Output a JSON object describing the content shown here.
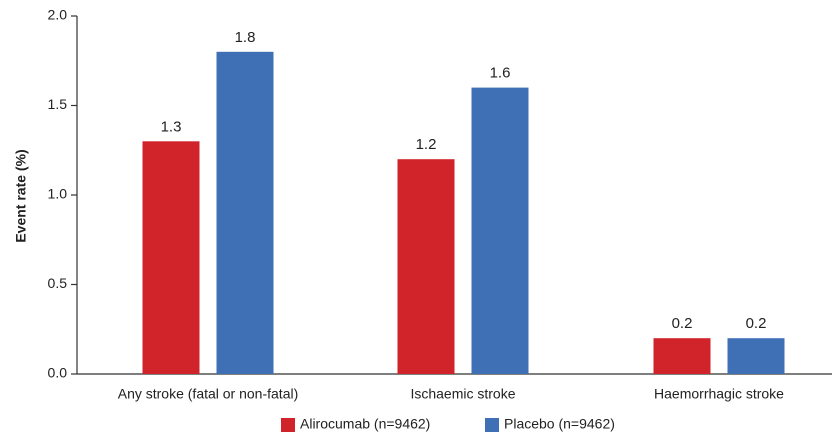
{
  "chart_data": {
    "type": "bar",
    "title": "",
    "xlabel": "",
    "ylabel": "Event rate (%)",
    "ylim": [
      0,
      2.0
    ],
    "yticks": [
      "0.0",
      "0.5",
      "1.0",
      "1.5",
      "2.0"
    ],
    "grid": false,
    "legend_position": "bottom-center",
    "categories": [
      "Any stroke (fatal or non-fatal)",
      "Ischaemic stroke",
      "Haemorrhagic stroke"
    ],
    "series": [
      {
        "name": "Alirocumab (n=9462)",
        "color": "#d1232a",
        "values": [
          1.3,
          1.2,
          0.2
        ],
        "labels": [
          "1.3",
          "1.2",
          "0.2"
        ]
      },
      {
        "name": "Placebo (n=9462)",
        "color": "#3f6fb5",
        "values": [
          1.8,
          1.6,
          0.2
        ],
        "labels": [
          "1.8",
          "1.6",
          "0.2"
        ]
      }
    ]
  }
}
